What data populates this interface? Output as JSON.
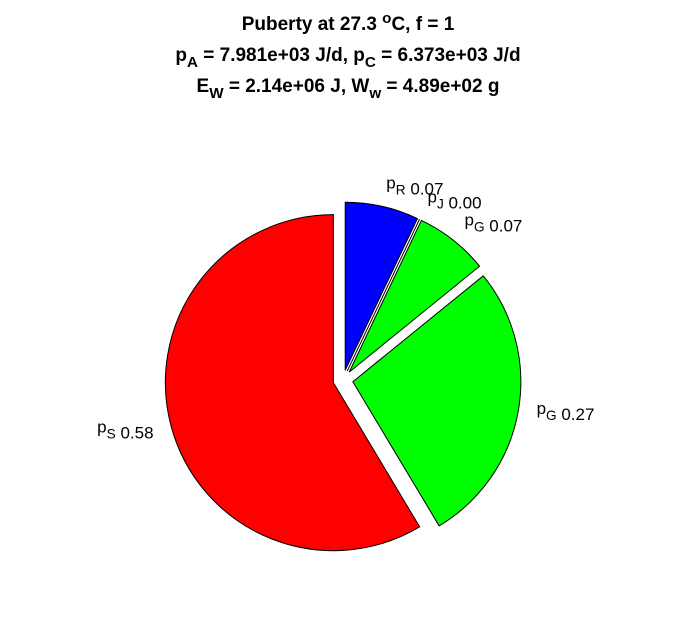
{
  "chart_data": {
    "type": "pie",
    "title": [
      [
        {
          "text": "Puberty at 27.3 "
        },
        {
          "sup": "o"
        },
        {
          "text": "C, f = 1"
        }
      ],
      [
        {
          "text": "p"
        },
        {
          "sub": "A"
        },
        {
          "text": " = 7.981e+03 J/d,  p"
        },
        {
          "sub": "C"
        },
        {
          "text": " = 6.373e+03 J/d"
        }
      ],
      [
        {
          "text": "E"
        },
        {
          "sub": "W"
        },
        {
          "text": " = 2.14e+06 J, W"
        },
        {
          "sub": "w"
        },
        {
          "text": " = 4.89e+02 g"
        }
      ]
    ],
    "categories": [
      [
        {
          "text": "p"
        },
        {
          "sub": "R"
        }
      ],
      [
        {
          "text": "p"
        },
        {
          "sub": "J"
        }
      ],
      [
        {
          "text": "p"
        },
        {
          "sub": "G"
        }
      ],
      [
        {
          "text": "p"
        },
        {
          "sub": "G"
        }
      ],
      [
        {
          "text": "p"
        },
        {
          "sub": "S"
        }
      ]
    ],
    "values": [
      0.07,
      0.0,
      0.07,
      0.27,
      0.58
    ],
    "value_labels": [
      "0.07",
      "0.00",
      "0.07",
      "0.27",
      "0.58"
    ],
    "colors": [
      "#0000ff",
      "#ffffff",
      "#00ff00",
      "#00ff00",
      "#ff0000"
    ]
  }
}
